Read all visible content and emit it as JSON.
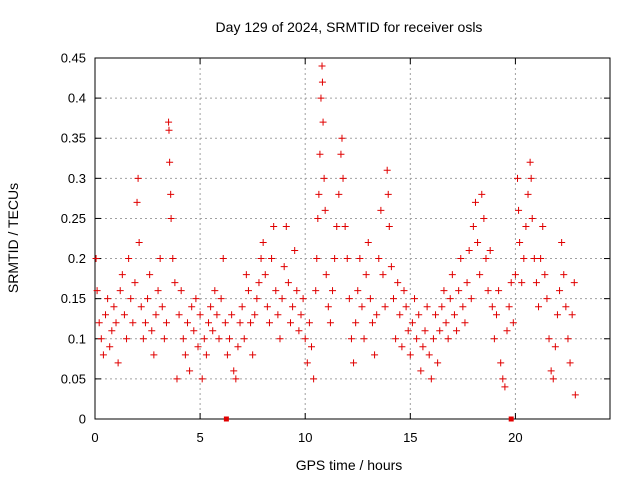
{
  "chart_data": {
    "type": "scatter",
    "title": "Day 129 of 2024, SRMTID for receiver osls",
    "xlabel": "GPS time / hours",
    "ylabel": "SRMTID / TECUs",
    "xlim": [
      0,
      24.5
    ],
    "ylim": [
      0,
      0.45
    ],
    "x_ticks": [
      0,
      5,
      10,
      15,
      20
    ],
    "x_tick_labels": [
      "0",
      "5",
      "10",
      "15",
      "20"
    ],
    "y_ticks": [
      0,
      0.05,
      0.1,
      0.15,
      0.2,
      0.25,
      0.3,
      0.35,
      0.4,
      0.45
    ],
    "y_tick_labels": [
      "0",
      "0.05",
      "0.1",
      "0.15",
      "0.2",
      "0.25",
      "0.3",
      "0.35",
      "0.4",
      "0.45"
    ],
    "grid": true,
    "marker": "plus",
    "color": "#e00000",
    "series": [
      {
        "name": "SRMTID",
        "points": [
          [
            0.05,
            0.2
          ],
          [
            0.1,
            0.16
          ],
          [
            0.2,
            0.12
          ],
          [
            0.3,
            0.1
          ],
          [
            0.4,
            0.08
          ],
          [
            0.5,
            0.13
          ],
          [
            0.6,
            0.15
          ],
          [
            0.7,
            0.09
          ],
          [
            0.8,
            0.11
          ],
          [
            0.9,
            0.14
          ],
          [
            1.0,
            0.12
          ],
          [
            1.1,
            0.07
          ],
          [
            1.2,
            0.16
          ],
          [
            1.3,
            0.18
          ],
          [
            1.4,
            0.13
          ],
          [
            1.5,
            0.1
          ],
          [
            1.6,
            0.2
          ],
          [
            1.7,
            0.15
          ],
          [
            1.8,
            0.12
          ],
          [
            1.9,
            0.17
          ],
          [
            2.0,
            0.27
          ],
          [
            2.05,
            0.3
          ],
          [
            2.1,
            0.22
          ],
          [
            2.2,
            0.14
          ],
          [
            2.3,
            0.1
          ],
          [
            2.4,
            0.12
          ],
          [
            2.5,
            0.15
          ],
          [
            2.6,
            0.18
          ],
          [
            2.7,
            0.11
          ],
          [
            2.8,
            0.08
          ],
          [
            2.9,
            0.13
          ],
          [
            3.0,
            0.16
          ],
          [
            3.1,
            0.2
          ],
          [
            3.2,
            0.14
          ],
          [
            3.3,
            0.1
          ],
          [
            3.4,
            0.12
          ],
          [
            3.5,
            0.37
          ],
          [
            3.52,
            0.36
          ],
          [
            3.55,
            0.32
          ],
          [
            3.6,
            0.28
          ],
          [
            3.62,
            0.25
          ],
          [
            3.7,
            0.2
          ],
          [
            3.8,
            0.17
          ],
          [
            3.9,
            0.05
          ],
          [
            4.0,
            0.13
          ],
          [
            4.1,
            0.16
          ],
          [
            4.2,
            0.1
          ],
          [
            4.3,
            0.08
          ],
          [
            4.4,
            0.12
          ],
          [
            4.5,
            0.06
          ],
          [
            4.6,
            0.14
          ],
          [
            4.7,
            0.11
          ],
          [
            4.8,
            0.15
          ],
          [
            4.9,
            0.09
          ],
          [
            5.0,
            0.13
          ],
          [
            5.1,
            0.05
          ],
          [
            5.2,
            0.1
          ],
          [
            5.3,
            0.08
          ],
          [
            5.4,
            0.12
          ],
          [
            5.5,
            0.14
          ],
          [
            5.6,
            0.11
          ],
          [
            5.7,
            0.16
          ],
          [
            5.8,
            0.13
          ],
          [
            5.9,
            0.1
          ],
          [
            6.0,
            0.15
          ],
          [
            6.1,
            0.2
          ],
          [
            6.2,
            0.12
          ],
          [
            6.3,
            0.08
          ],
          [
            6.4,
            0.1
          ],
          [
            6.5,
            0.13
          ],
          [
            6.6,
            0.06
          ],
          [
            6.7,
            0.05
          ],
          [
            6.8,
            0.09
          ],
          [
            6.9,
            0.12
          ],
          [
            7.0,
            0.14
          ],
          [
            7.1,
            0.1
          ],
          [
            7.2,
            0.18
          ],
          [
            7.3,
            0.16
          ],
          [
            7.4,
            0.12
          ],
          [
            7.5,
            0.08
          ],
          [
            7.6,
            0.13
          ],
          [
            7.7,
            0.15
          ],
          [
            7.8,
            0.17
          ],
          [
            7.9,
            0.2
          ],
          [
            8.0,
            0.22
          ],
          [
            8.1,
            0.18
          ],
          [
            8.2,
            0.14
          ],
          [
            8.3,
            0.12
          ],
          [
            8.4,
            0.2
          ],
          [
            8.5,
            0.24
          ],
          [
            8.6,
            0.16
          ],
          [
            8.7,
            0.13
          ],
          [
            8.8,
            0.1
          ],
          [
            8.9,
            0.15
          ],
          [
            9.0,
            0.19
          ],
          [
            9.1,
            0.24
          ],
          [
            9.2,
            0.17
          ],
          [
            9.3,
            0.12
          ],
          [
            9.4,
            0.14
          ],
          [
            9.5,
            0.21
          ],
          [
            9.6,
            0.16
          ],
          [
            9.7,
            0.11
          ],
          [
            9.8,
            0.13
          ],
          [
            9.9,
            0.15
          ],
          [
            10.0,
            0.1
          ],
          [
            10.1,
            0.07
          ],
          [
            10.2,
            0.12
          ],
          [
            10.3,
            0.09
          ],
          [
            10.4,
            0.05
          ],
          [
            10.5,
            0.16
          ],
          [
            10.55,
            0.2
          ],
          [
            10.6,
            0.25
          ],
          [
            10.65,
            0.28
          ],
          [
            10.7,
            0.33
          ],
          [
            10.75,
            0.4
          ],
          [
            10.8,
            0.44
          ],
          [
            10.82,
            0.42
          ],
          [
            10.85,
            0.37
          ],
          [
            10.9,
            0.3
          ],
          [
            10.95,
            0.26
          ],
          [
            11.0,
            0.18
          ],
          [
            11.1,
            0.14
          ],
          [
            11.2,
            0.12
          ],
          [
            11.3,
            0.16
          ],
          [
            11.4,
            0.2
          ],
          [
            11.5,
            0.24
          ],
          [
            11.6,
            0.28
          ],
          [
            11.7,
            0.33
          ],
          [
            11.75,
            0.35
          ],
          [
            11.8,
            0.3
          ],
          [
            11.9,
            0.24
          ],
          [
            12.0,
            0.2
          ],
          [
            12.1,
            0.15
          ],
          [
            12.2,
            0.1
          ],
          [
            12.3,
            0.07
          ],
          [
            12.4,
            0.12
          ],
          [
            12.5,
            0.16
          ],
          [
            12.6,
            0.2
          ],
          [
            12.7,
            0.14
          ],
          [
            12.8,
            0.1
          ],
          [
            12.9,
            0.18
          ],
          [
            13.0,
            0.22
          ],
          [
            13.1,
            0.15
          ],
          [
            13.2,
            0.12
          ],
          [
            13.3,
            0.08
          ],
          [
            13.4,
            0.13
          ],
          [
            13.5,
            0.2
          ],
          [
            13.6,
            0.26
          ],
          [
            13.7,
            0.18
          ],
          [
            13.8,
            0.14
          ],
          [
            13.9,
            0.31
          ],
          [
            13.95,
            0.28
          ],
          [
            14.0,
            0.24
          ],
          [
            14.1,
            0.19
          ],
          [
            14.2,
            0.15
          ],
          [
            14.3,
            0.1
          ],
          [
            14.4,
            0.17
          ],
          [
            14.5,
            0.13
          ],
          [
            14.6,
            0.09
          ],
          [
            14.7,
            0.16
          ],
          [
            14.8,
            0.14
          ],
          [
            14.9,
            0.11
          ],
          [
            15.0,
            0.08
          ],
          [
            15.1,
            0.12
          ],
          [
            15.2,
            0.15
          ],
          [
            15.3,
            0.1
          ],
          [
            15.4,
            0.13
          ],
          [
            15.5,
            0.06
          ],
          [
            15.6,
            0.09
          ],
          [
            15.7,
            0.11
          ],
          [
            15.8,
            0.14
          ],
          [
            15.9,
            0.08
          ],
          [
            16.0,
            0.05
          ],
          [
            16.1,
            0.1
          ],
          [
            16.2,
            0.13
          ],
          [
            16.3,
            0.07
          ],
          [
            16.4,
            0.11
          ],
          [
            16.5,
            0.14
          ],
          [
            16.6,
            0.16
          ],
          [
            16.7,
            0.12
          ],
          [
            16.8,
            0.1
          ],
          [
            16.9,
            0.15
          ],
          [
            17.0,
            0.18
          ],
          [
            17.1,
            0.13
          ],
          [
            17.2,
            0.11
          ],
          [
            17.3,
            0.16
          ],
          [
            17.4,
            0.2
          ],
          [
            17.5,
            0.14
          ],
          [
            17.6,
            0.12
          ],
          [
            17.7,
            0.17
          ],
          [
            17.8,
            0.21
          ],
          [
            17.9,
            0.15
          ],
          [
            18.0,
            0.24
          ],
          [
            18.1,
            0.27
          ],
          [
            18.2,
            0.22
          ],
          [
            18.3,
            0.18
          ],
          [
            18.4,
            0.28
          ],
          [
            18.5,
            0.25
          ],
          [
            18.6,
            0.2
          ],
          [
            18.7,
            0.16
          ],
          [
            18.8,
            0.21
          ],
          [
            18.9,
            0.14
          ],
          [
            19.0,
            0.1
          ],
          [
            19.1,
            0.13
          ],
          [
            19.2,
            0.16
          ],
          [
            19.3,
            0.07
          ],
          [
            19.4,
            0.05
          ],
          [
            19.5,
            0.04
          ],
          [
            19.6,
            0.11
          ],
          [
            19.7,
            0.14
          ],
          [
            19.8,
            0.17
          ],
          [
            19.9,
            0.12
          ],
          [
            20.0,
            0.18
          ],
          [
            20.1,
            0.3
          ],
          [
            20.15,
            0.26
          ],
          [
            20.2,
            0.22
          ],
          [
            20.3,
            0.17
          ],
          [
            20.4,
            0.2
          ],
          [
            20.5,
            0.24
          ],
          [
            20.6,
            0.28
          ],
          [
            20.7,
            0.32
          ],
          [
            20.75,
            0.3
          ],
          [
            20.8,
            0.25
          ],
          [
            20.9,
            0.2
          ],
          [
            21.0,
            0.17
          ],
          [
            21.1,
            0.14
          ],
          [
            21.2,
            0.2
          ],
          [
            21.3,
            0.24
          ],
          [
            21.4,
            0.18
          ],
          [
            21.5,
            0.15
          ],
          [
            21.6,
            0.1
          ],
          [
            21.7,
            0.06
          ],
          [
            21.8,
            0.05
          ],
          [
            21.9,
            0.09
          ],
          [
            22.0,
            0.13
          ],
          [
            22.1,
            0.16
          ],
          [
            22.2,
            0.22
          ],
          [
            22.3,
            0.18
          ],
          [
            22.4,
            0.14
          ],
          [
            22.5,
            0.1
          ],
          [
            22.6,
            0.07
          ],
          [
            22.7,
            0.13
          ],
          [
            22.8,
            0.17
          ],
          [
            22.85,
            0.03
          ]
        ]
      }
    ],
    "markers_on_axis": [
      [
        6.25,
        0
      ],
      [
        19.8,
        0
      ]
    ]
  }
}
